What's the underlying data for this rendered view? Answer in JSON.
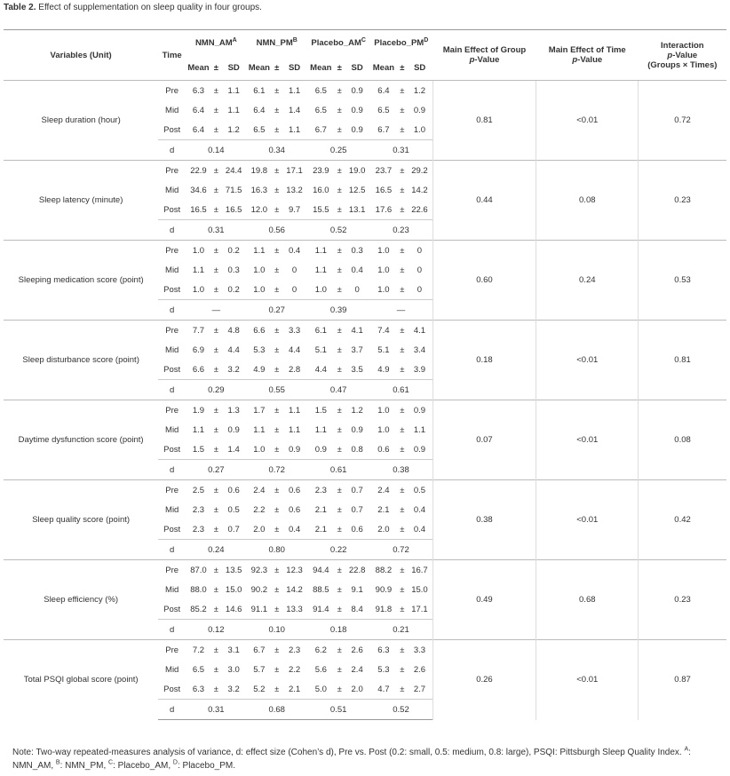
{
  "caption": {
    "label": "Table 2.",
    "text": " Effect of supplementation on sleep quality in four groups."
  },
  "table": {
    "headers": {
      "variables": "Variables (Unit)",
      "time": "Time",
      "groups": [
        {
          "name": "NMN_AM",
          "sup": "A"
        },
        {
          "name": "NMN_PM",
          "sup": "B"
        },
        {
          "name": "Placebo_AM",
          "sup": "C"
        },
        {
          "name": "Placebo_PM",
          "sup": "D"
        }
      ],
      "mean": "Mean",
      "pm": "±",
      "sd": "SD",
      "group_effect": {
        "line1": "Main Effect of Group",
        "p": "p",
        "rest": "-Value"
      },
      "time_effect": {
        "line1": "Main Effect of Time",
        "p": "p",
        "rest": "-Value"
      },
      "interaction": {
        "line1": "Interaction",
        "p": "p",
        "rest": "-Value",
        "line3": "(Groups × Times)"
      }
    },
    "variables": [
      {
        "name": "Sleep duration (hour)",
        "rows": [
          {
            "time": "Pre",
            "values": [
              [
                "6.3",
                "1.1"
              ],
              [
                "6.1",
                "1.1"
              ],
              [
                "6.5",
                "0.9"
              ],
              [
                "6.4",
                "1.2"
              ]
            ]
          },
          {
            "time": "Mid",
            "values": [
              [
                "6.4",
                "1.1"
              ],
              [
                "6.4",
                "1.4"
              ],
              [
                "6.5",
                "0.9"
              ],
              [
                "6.5",
                "0.9"
              ]
            ]
          },
          {
            "time": "Post",
            "values": [
              [
                "6.4",
                "1.2"
              ],
              [
                "6.5",
                "1.1"
              ],
              [
                "6.7",
                "0.9"
              ],
              [
                "6.7",
                "1.0"
              ]
            ]
          }
        ],
        "d_label": "d",
        "d": [
          "0.14",
          "0.34",
          "0.25",
          "0.31"
        ],
        "group_p": "0.81",
        "time_p": "<0.01",
        "interaction_p": "0.72"
      },
      {
        "name": "Sleep latency (minute)",
        "rows": [
          {
            "time": "Pre",
            "values": [
              [
                "22.9",
                "24.4"
              ],
              [
                "19.8",
                "17.1"
              ],
              [
                "23.9",
                "19.0"
              ],
              [
                "23.7",
                "29.2"
              ]
            ]
          },
          {
            "time": "Mid",
            "values": [
              [
                "34.6",
                "71.5"
              ],
              [
                "16.3",
                "13.2"
              ],
              [
                "16.0",
                "12.5"
              ],
              [
                "16.5",
                "14.2"
              ]
            ]
          },
          {
            "time": "Post",
            "values": [
              [
                "16.5",
                "16.5"
              ],
              [
                "12.0",
                "9.7"
              ],
              [
                "15.5",
                "13.1"
              ],
              [
                "17.6",
                "22.6"
              ]
            ]
          }
        ],
        "d_label": "d",
        "d": [
          "0.31",
          "0.56",
          "0.52",
          "0.23"
        ],
        "group_p": "0.44",
        "time_p": "0.08",
        "interaction_p": "0.23"
      },
      {
        "name": "Sleeping medication score (point)",
        "rows": [
          {
            "time": "Pre",
            "values": [
              [
                "1.0",
                "0.2"
              ],
              [
                "1.1",
                "0.4"
              ],
              [
                "1.1",
                "0.3"
              ],
              [
                "1.0",
                "0"
              ]
            ]
          },
          {
            "time": "Mid",
            "values": [
              [
                "1.1",
                "0.3"
              ],
              [
                "1.0",
                "0"
              ],
              [
                "1.1",
                "0.4"
              ],
              [
                "1.0",
                "0"
              ]
            ]
          },
          {
            "time": "Post",
            "values": [
              [
                "1.0",
                "0.2"
              ],
              [
                "1.0",
                "0"
              ],
              [
                "1.0",
                "0"
              ],
              [
                "1.0",
                "0"
              ]
            ]
          }
        ],
        "d_label": "d",
        "d": [
          "—",
          "0.27",
          "0.39",
          "—"
        ],
        "group_p": "0.60",
        "time_p": "0.24",
        "interaction_p": "0.53"
      },
      {
        "name": "Sleep disturbance score (point)",
        "rows": [
          {
            "time": "Pre",
            "values": [
              [
                "7.7",
                "4.8"
              ],
              [
                "6.6",
                "3.3"
              ],
              [
                "6.1",
                "4.1"
              ],
              [
                "7.4",
                "4.1"
              ]
            ]
          },
          {
            "time": "Mid",
            "values": [
              [
                "6.9",
                "4.4"
              ],
              [
                "5.3",
                "4.4"
              ],
              [
                "5.1",
                "3.7"
              ],
              [
                "5.1",
                "3.4"
              ]
            ]
          },
          {
            "time": "Post",
            "values": [
              [
                "6.6",
                "3.2"
              ],
              [
                "4.9",
                "2.8"
              ],
              [
                "4.4",
                "3.5"
              ],
              [
                "4.9",
                "3.9"
              ]
            ]
          }
        ],
        "d_label": "d",
        "d": [
          "0.29",
          "0.55",
          "0.47",
          "0.61"
        ],
        "group_p": "0.18",
        "time_p": "<0.01",
        "interaction_p": "0.81"
      },
      {
        "name": "Daytime dysfunction score (point)",
        "rows": [
          {
            "time": "Pre",
            "values": [
              [
                "1.9",
                "1.3"
              ],
              [
                "1.7",
                "1.1"
              ],
              [
                "1.5",
                "1.2"
              ],
              [
                "1.0",
                "0.9"
              ]
            ]
          },
          {
            "time": "Mid",
            "values": [
              [
                "1.1",
                "0.9"
              ],
              [
                "1.1",
                "1.1"
              ],
              [
                "1.1",
                "0.9"
              ],
              [
                "1.0",
                "1.1"
              ]
            ]
          },
          {
            "time": "Post",
            "values": [
              [
                "1.5",
                "1.4"
              ],
              [
                "1.0",
                "0.9"
              ],
              [
                "0.9",
                "0.8"
              ],
              [
                "0.6",
                "0.9"
              ]
            ]
          }
        ],
        "d_label": "d",
        "d": [
          "0.27",
          "0.72",
          "0.61",
          "0.38"
        ],
        "group_p": "0.07",
        "time_p": "<0.01",
        "interaction_p": "0.08"
      },
      {
        "name": "Sleep quality score (point)",
        "rows": [
          {
            "time": "Pre",
            "values": [
              [
                "2.5",
                "0.6"
              ],
              [
                "2.4",
                "0.6"
              ],
              [
                "2.3",
                "0.7"
              ],
              [
                "2.4",
                "0.5"
              ]
            ]
          },
          {
            "time": "Mid",
            "values": [
              [
                "2.3",
                "0.5"
              ],
              [
                "2.2",
                "0.6"
              ],
              [
                "2.1",
                "0.7"
              ],
              [
                "2.1",
                "0.4"
              ]
            ]
          },
          {
            "time": "Post",
            "values": [
              [
                "2.3",
                "0.7"
              ],
              [
                "2.0",
                "0.4"
              ],
              [
                "2.1",
                "0.6"
              ],
              [
                "2.0",
                "0.4"
              ]
            ]
          }
        ],
        "d_label": "d",
        "d": [
          "0.24",
          "0.80",
          "0.22",
          "0.72"
        ],
        "group_p": "0.38",
        "time_p": "<0.01",
        "interaction_p": "0.42"
      },
      {
        "name": "Sleep efficiency (%)",
        "rows": [
          {
            "time": "Pre",
            "values": [
              [
                "87.0",
                "13.5"
              ],
              [
                "92.3",
                "12.3"
              ],
              [
                "94.4",
                "22.8"
              ],
              [
                "88.2",
                "16.7"
              ]
            ]
          },
          {
            "time": "Mid",
            "values": [
              [
                "88.0",
                "15.0"
              ],
              [
                "90.2",
                "14.2"
              ],
              [
                "88.5",
                "9.1"
              ],
              [
                "90.9",
                "15.0"
              ]
            ]
          },
          {
            "time": "Post",
            "values": [
              [
                "85.2",
                "14.6"
              ],
              [
                "91.1",
                "13.3"
              ],
              [
                "91.4",
                "8.4"
              ],
              [
                "91.8",
                "17.1"
              ]
            ]
          }
        ],
        "d_label": "d",
        "d": [
          "0.12",
          "0.10",
          "0.18",
          "0.21"
        ],
        "group_p": "0.49",
        "time_p": "0.68",
        "interaction_p": "0.23"
      },
      {
        "name": "Total PSQI global score (point)",
        "rows": [
          {
            "time": "Pre",
            "values": [
              [
                "7.2",
                "3.1"
              ],
              [
                "6.7",
                "2.3"
              ],
              [
                "6.2",
                "2.6"
              ],
              [
                "6.3",
                "3.3"
              ]
            ]
          },
          {
            "time": "Mid",
            "values": [
              [
                "6.5",
                "3.0"
              ],
              [
                "5.7",
                "2.2"
              ],
              [
                "5.6",
                "2.4"
              ],
              [
                "5.3",
                "2.6"
              ]
            ]
          },
          {
            "time": "Post",
            "values": [
              [
                "6.3",
                "3.2"
              ],
              [
                "5.2",
                "2.1"
              ],
              [
                "5.0",
                "2.0"
              ],
              [
                "4.7",
                "2.7"
              ]
            ]
          }
        ],
        "d_label": "d",
        "d": [
          "0.31",
          "0.68",
          "0.51",
          "0.52"
        ],
        "group_p": "0.26",
        "time_p": "<0.01",
        "interaction_p": "0.87"
      }
    ]
  },
  "note": {
    "text": "Note: Two-way repeated-measures analysis of variance, d: effect size (Cohen’s d), Pre vs. Post (0.2: small, 0.5: medium, 0.8: large), PSQI: Pittsburgh Sleep Quality Index. ",
    "keys": [
      {
        "sup": "A",
        "text": ": NMN_AM, "
      },
      {
        "sup": "B",
        "text": ": NMN_PM, "
      },
      {
        "sup": "C",
        "text": ": Placebo_AM, "
      },
      {
        "sup": "D",
        "text": ": Placebo_PM."
      }
    ]
  }
}
